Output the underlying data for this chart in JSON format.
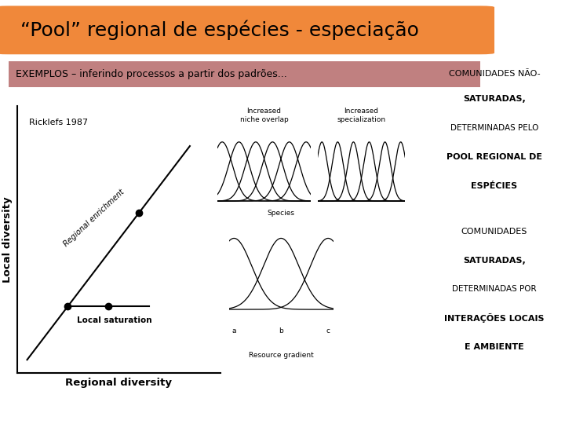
{
  "title": "“Pool” regional de espécies - especiação",
  "title_bg": "#F0883A",
  "subtitle": "EXEMPLOS – inferindo processos a partir dos padrões...",
  "subtitle_bg": "#C08080",
  "bg_color": "#FFFFFF",
  "ricklefs_label": "Ricklefs 1987",
  "xlabel": "Regional diversity",
  "ylabel": "Local diversity",
  "line1_label": "Regional enrichment",
  "line2_label": "Local saturation",
  "text1_lines": [
    [
      "COMUNIDADES ",
      "normal",
      "NÃO-",
      "bold"
    ],
    [
      "SATURADAS,",
      "bold"
    ],
    [
      "DETERMINADAS PELO",
      "normal"
    ],
    [
      "POOL REGIONAL DE",
      "bold"
    ],
    [
      "ESPÉCIES",
      "bold"
    ]
  ],
  "text2_lines": [
    [
      "COMUNIDADES",
      "normal"
    ],
    [
      "SATURADAS,",
      "bold"
    ],
    [
      "DETERMINADAS POR",
      "normal"
    ],
    [
      "INTERAÇÕES LOCAIS",
      "bold"
    ],
    [
      "E AMBIENTE",
      "bold"
    ]
  ],
  "niche_label1": "Increased\nniche overlap",
  "niche_label2": "Increased\nspecialization",
  "species_label": "Species",
  "resource_label": "Resource gradient",
  "title_fontsize": 18,
  "subtitle_fontsize": 9
}
